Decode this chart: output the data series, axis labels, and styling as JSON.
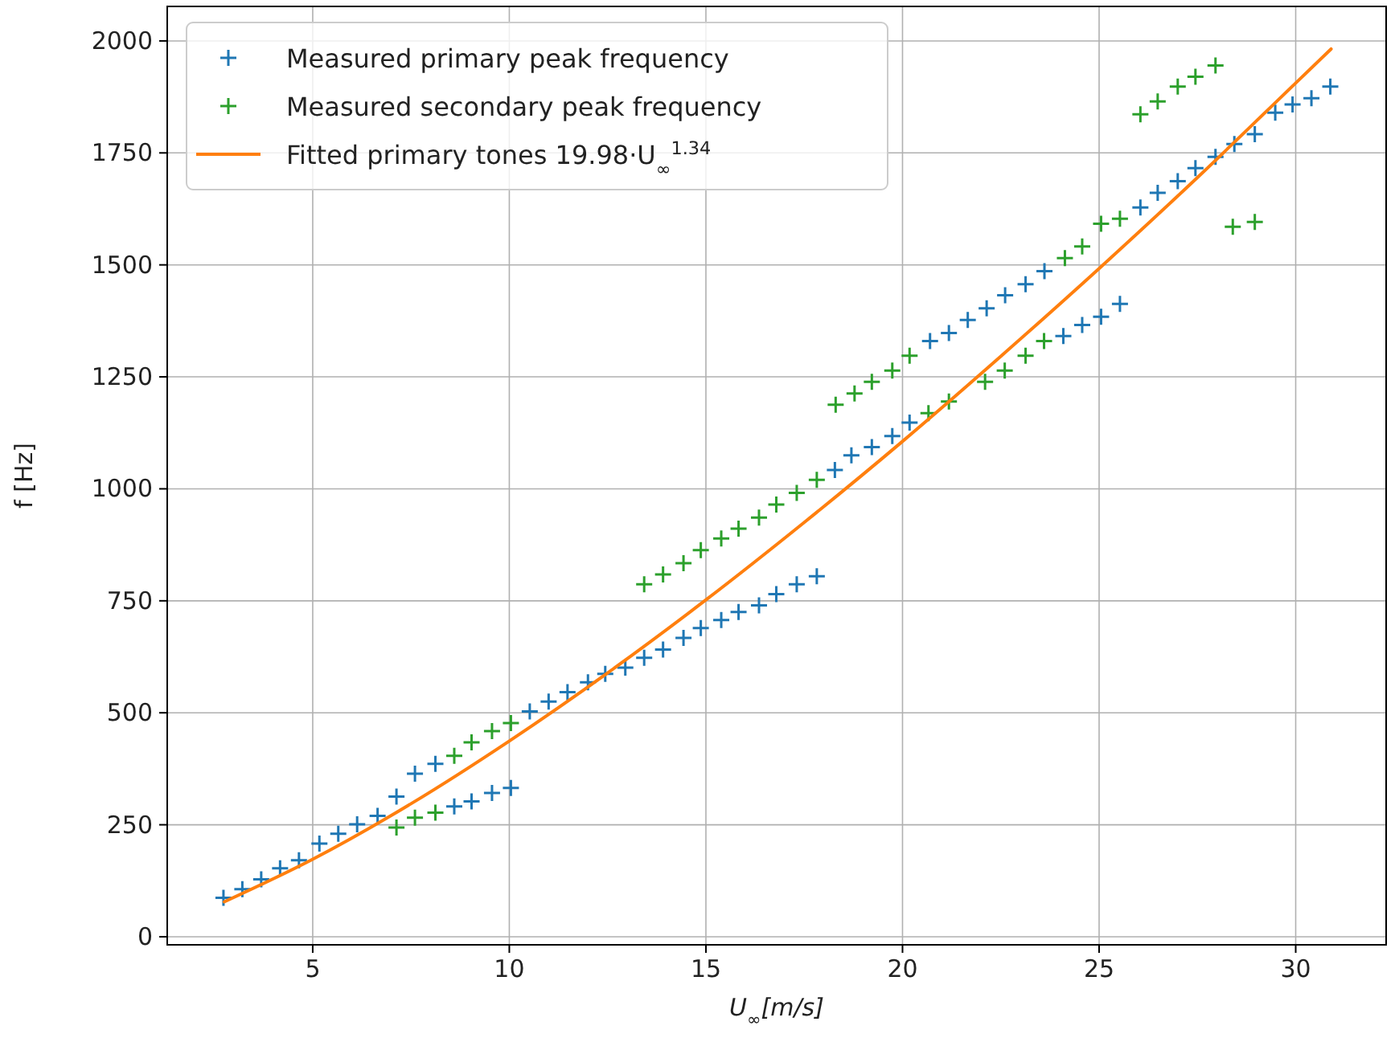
{
  "chart_data": {
    "type": "scatter",
    "xlabel": "U$_{∞}$[m/s]",
    "ylabel": "f [Hz]",
    "xlim": [
      1.3,
      32.3
    ],
    "xticks": [
      5,
      10,
      15,
      20,
      25,
      30
    ],
    "ylim": [
      -18,
      2077
    ],
    "yticks": [
      0,
      250,
      500,
      750,
      1000,
      1250,
      1500,
      1750,
      2000
    ],
    "grid": true,
    "legend": "top left",
    "series": [
      {
        "name": "Measured primary peak frequency",
        "color": "#1f77b4",
        "marker": "cross",
        "x": [
          2.73,
          3.21,
          3.69,
          4.17,
          4.65,
          5.17,
          5.65,
          6.13,
          6.65,
          7.13,
          7.6,
          8.12,
          8.6,
          9.04,
          9.56,
          10.04,
          10.52,
          11.0,
          11.48,
          12.0,
          12.44,
          12.95,
          13.43,
          13.91,
          14.43,
          14.87,
          15.39,
          15.83,
          16.35,
          16.79,
          17.31,
          17.82,
          18.28,
          18.7,
          19.22,
          19.74,
          20.18,
          20.7,
          21.18,
          21.66,
          22.14,
          22.61,
          23.13,
          23.61,
          24.09,
          24.57,
          25.05,
          25.53,
          26.05,
          26.49,
          27.0,
          27.45,
          27.96,
          28.44,
          28.96,
          29.48,
          29.92,
          30.4,
          30.88
        ],
        "values": [
          87,
          106,
          128,
          153,
          171,
          208,
          230,
          251,
          270,
          313,
          364,
          386,
          291,
          302,
          321,
          332,
          503,
          525,
          546,
          568,
          587,
          601,
          623,
          641,
          667,
          689,
          707,
          725,
          740,
          765,
          787,
          805,
          1042,
          1075,
          1093,
          1118,
          1148,
          1330,
          1348,
          1377,
          1403,
          1432,
          1457,
          1486,
          1341,
          1366,
          1384,
          1413,
          1628,
          1661,
          1687,
          1716,
          1741,
          1770,
          1792,
          1840,
          1858,
          1872,
          1898
        ]
      },
      {
        "name": "Measured secondary peak frequency",
        "color": "#2ca02c",
        "marker": "cross",
        "x": [
          7.13,
          7.6,
          8.12,
          8.6,
          9.04,
          9.56,
          10.04,
          13.43,
          13.91,
          14.43,
          14.87,
          15.39,
          15.83,
          16.35,
          16.79,
          17.31,
          17.82,
          18.3,
          18.78,
          19.22,
          19.74,
          20.18,
          20.66,
          21.18,
          22.1,
          22.6,
          23.13,
          23.6,
          24.13,
          24.57,
          25.05,
          25.53,
          26.05,
          26.49,
          27.0,
          27.45,
          27.96,
          28.4,
          28.96
        ],
        "values": [
          244,
          266,
          277,
          404,
          434,
          459,
          477,
          787,
          809,
          834,
          863,
          889,
          911,
          936,
          965,
          991,
          1020,
          1188,
          1213,
          1239,
          1264,
          1297,
          1169,
          1195,
          1239,
          1264,
          1297,
          1330,
          1515,
          1541,
          1592,
          1603,
          1836,
          1865,
          1898,
          1920,
          1945,
          1585,
          1596
        ]
      },
      {
        "name": "Fitted primary tones 19.98·U$_{∞}$$^{1.34}$",
        "type": "line",
        "color": "#ff7f0e",
        "marker": "none",
        "line_style": "solid",
        "x": [
          2.75,
          5,
          7.5,
          10,
          12.5,
          15,
          17.5,
          20,
          22.5,
          25,
          27.5,
          30,
          30.9
        ],
        "values": [
          78,
          173,
          297,
          437,
          589,
          752,
          925,
          1106,
          1296,
          1492,
          1695,
          1906,
          1982
        ]
      }
    ]
  }
}
